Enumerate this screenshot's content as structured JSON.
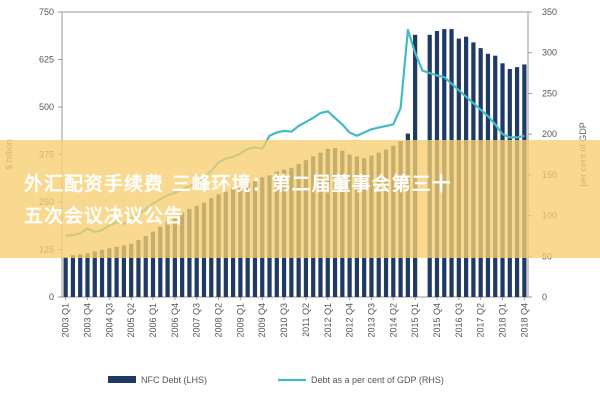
{
  "banner": {
    "line1": "外汇配资手续费 三峰环境：第二届董事会第三十",
    "line2": "五次会议决议公告"
  },
  "colors": {
    "bar": "#1f3b63",
    "line": "#45b9c4",
    "banner": "#f6ce70"
  },
  "chart_data": {
    "type": "bar",
    "categories": [
      "2003 Q1",
      "2003 Q2",
      "2003 Q3",
      "2003 Q4",
      "2004 Q1",
      "2004 Q2",
      "2004 Q3",
      "2004 Q4",
      "2005 Q1",
      "2005 Q2",
      "2005 Q3",
      "2005 Q4",
      "2006 Q1",
      "2006 Q2",
      "2006 Q3",
      "2006 Q4",
      "2007 Q1",
      "2007 Q2",
      "2007 Q3",
      "2007 Q4",
      "2008 Q1",
      "2008 Q2",
      "2008 Q3",
      "2008 Q4",
      "2009 Q1",
      "2009 Q2",
      "2009 Q3",
      "2009 Q4",
      "2010 Q1",
      "2010 Q2",
      "2010 Q3",
      "2010 Q4",
      "2011 Q1",
      "2011 Q2",
      "2011 Q3",
      "2011 Q4",
      "2012 Q1",
      "2012 Q2",
      "2012 Q3",
      "2012 Q4",
      "2013 Q1",
      "2013 Q2",
      "2013 Q3",
      "2013 Q4",
      "2014 Q1",
      "2014 Q2",
      "2014 Q3",
      "2014 Q4",
      "2015 Q1",
      "2015 Q2",
      "2015 Q3",
      "2015 Q4",
      "2016 Q1",
      "2016 Q2",
      "2016 Q3",
      "2016 Q4",
      "2017 Q1",
      "2017 Q2",
      "2017 Q3",
      "2017 Q4",
      "2018 Q1",
      "2018 Q2",
      "2018 Q3",
      "2018 Q4"
    ],
    "tick_labels": [
      "2003 Q1",
      "2003 Q4",
      "2004 Q3",
      "2005 Q2",
      "2006 Q1",
      "2006 Q4",
      "2007 Q3",
      "2008 Q2",
      "2009 Q1",
      "2009 Q4",
      "2010 Q3",
      "2011 Q2",
      "2012 Q1",
      "2012 Q4",
      "2013 Q3",
      "2014 Q2",
      "2015 Q1",
      "2015 Q4",
      "2016 Q3",
      "2017 Q2",
      "2018 Q1",
      "2018 Q4"
    ],
    "series": [
      {
        "name": "NFC Debt (LHS)",
        "axis": "left",
        "type": "bar",
        "values": [
          105,
          110,
          112,
          115,
          120,
          124,
          128,
          132,
          136,
          140,
          150,
          160,
          172,
          185,
          198,
          212,
          222,
          232,
          240,
          248,
          260,
          270,
          278,
          285,
          290,
          300,
          305,
          315,
          320,
          330,
          335,
          340,
          350,
          360,
          370,
          380,
          390,
          392,
          385,
          375,
          370,
          365,
          372,
          380,
          388,
          398,
          410,
          430,
          690,
          680,
          690,
          700,
          705,
          705,
          680,
          685,
          670,
          655,
          640,
          635,
          615,
          600,
          605,
          612
        ],
        "gaps": [
          49
        ]
      },
      {
        "name": "Debt as a per cent of GDP (RHS)",
        "axis": "right",
        "type": "line",
        "values": [
          75,
          76,
          78,
          84,
          80,
          82,
          88,
          92,
          90,
          96,
          102,
          108,
          115,
          120,
          125,
          128,
          132,
          136,
          140,
          146,
          155,
          165,
          170,
          172,
          176,
          182,
          184,
          182,
          198,
          202,
          204,
          203,
          210,
          215,
          220,
          226,
          228,
          220,
          212,
          202,
          198,
          202,
          206,
          208,
          210,
          212,
          232,
          328,
          300,
          278,
          275,
          272,
          270,
          262,
          254,
          246,
          238,
          230,
          222,
          212,
          200,
          196,
          196,
          198
        ]
      }
    ],
    "y_left": {
      "min": 0,
      "max": 750,
      "ticks": [
        "0",
        "125",
        "250",
        "375",
        "500",
        "625",
        "750"
      ],
      "label": "$ billion"
    },
    "y_right": {
      "min": 0,
      "max": 350,
      "ticks": [
        "0",
        "50",
        "100",
        "150",
        "200",
        "250",
        "300",
        "350"
      ],
      "label": "per cent of GDP"
    },
    "grid": false,
    "legend_position": "bottom",
    "legend": [
      {
        "label": "NFC Debt (LHS)",
        "kind": "bar"
      },
      {
        "label": "Debt as a per cent of GDP (RHS)",
        "kind": "line"
      }
    ]
  }
}
